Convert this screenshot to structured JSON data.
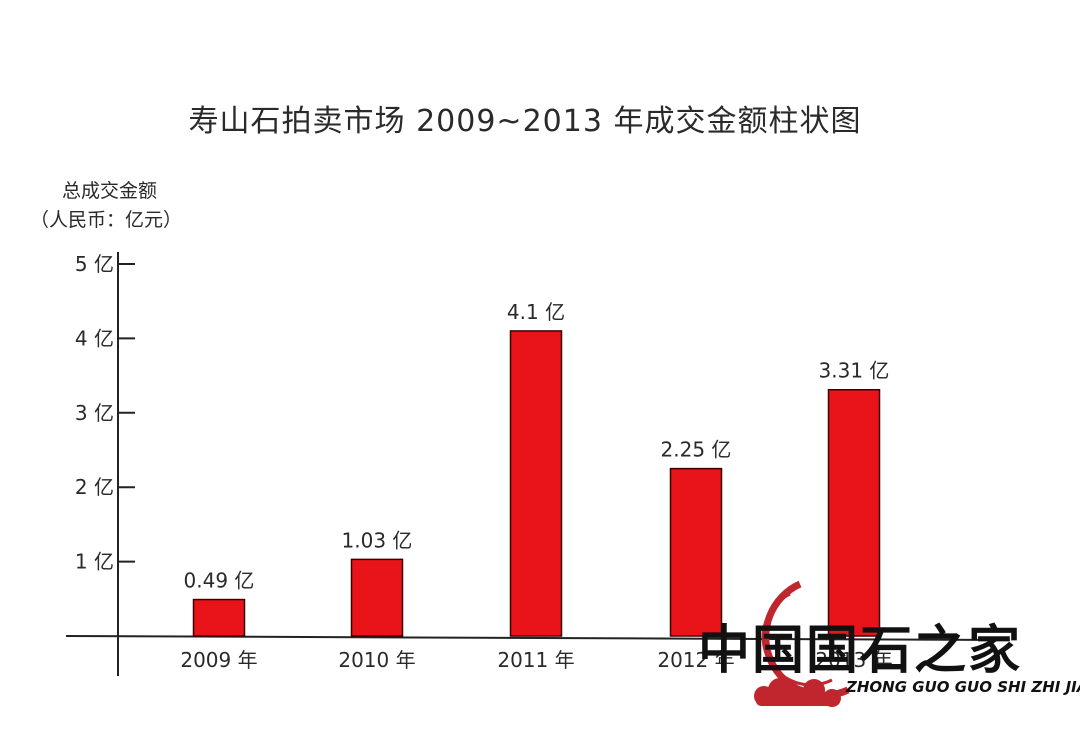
{
  "chart_data": {
    "type": "bar",
    "title": "寿山石拍卖市场 2009~2013 年成交金额柱状图",
    "ylabel": "总成交金额",
    "ylabel_unit": "（人民币：亿元）",
    "categories": [
      "2009 年",
      "2010 年",
      "2011 年",
      "2012 年",
      "2013 年"
    ],
    "values": [
      0.49,
      1.03,
      4.1,
      2.25,
      3.31
    ],
    "data_labels": [
      "0.49 亿",
      "1.03 亿",
      "4.1 亿",
      "2.25 亿",
      "3.31 亿"
    ],
    "yticks": [
      1,
      2,
      3,
      4,
      5
    ],
    "ytick_labels": [
      "1 亿",
      "2 亿",
      "3 亿",
      "4 亿",
      "5 亿"
    ],
    "ylim": [
      0,
      5
    ],
    "grid": false,
    "bar_color": "#e8141a"
  },
  "watermark": {
    "name": "中国国石之家",
    "pinyin": "ZHONG GUO GUO SHI ZHI JIA",
    "ring_color": "#c0262d"
  }
}
